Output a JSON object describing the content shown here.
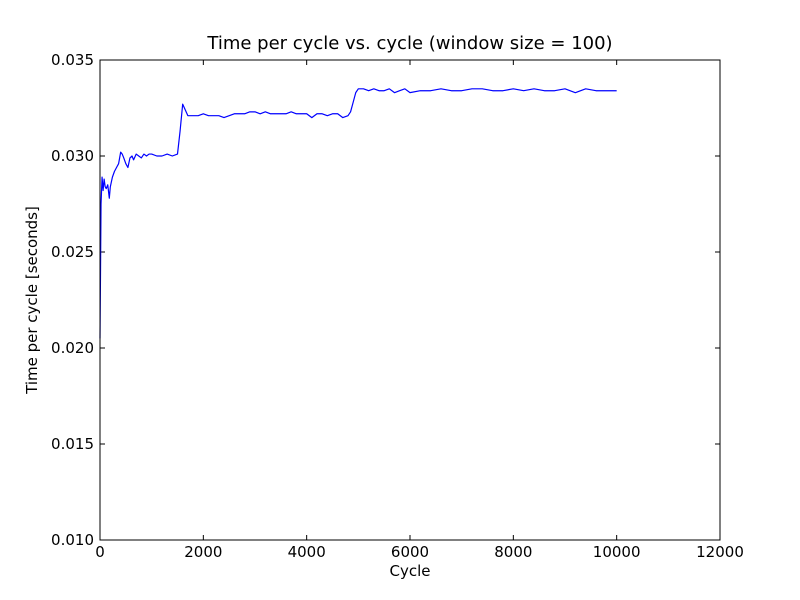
{
  "chart_data": {
    "type": "line",
    "title": "Time per cycle vs. cycle (window size = 100)",
    "xlabel": "Cycle",
    "ylabel": "Time per cycle [seconds]",
    "xlim": [
      0,
      12000
    ],
    "ylim": [
      0.01,
      0.035
    ],
    "x_ticks": [
      0,
      2000,
      4000,
      6000,
      8000,
      10000,
      12000
    ],
    "x_tick_labels": [
      "0",
      "2000",
      "4000",
      "6000",
      "8000",
      "10000",
      "12000"
    ],
    "y_ticks": [
      0.01,
      0.015,
      0.02,
      0.025,
      0.03,
      0.035
    ],
    "y_tick_labels": [
      "0.010",
      "0.015",
      "0.020",
      "0.025",
      "0.030",
      "0.035"
    ],
    "grid": false,
    "legend": "none",
    "series": [
      {
        "color": "#0000ff",
        "x": [
          0,
          20,
          40,
          60,
          80,
          100,
          120,
          150,
          180,
          200,
          240,
          280,
          320,
          360,
          400,
          430,
          460,
          500,
          540,
          580,
          620,
          650,
          700,
          750,
          800,
          850,
          900,
          950,
          1000,
          1100,
          1200,
          1300,
          1400,
          1500,
          1550,
          1600,
          1650,
          1700,
          1800,
          1900,
          2000,
          2100,
          2200,
          2300,
          2400,
          2500,
          2600,
          2700,
          2800,
          2900,
          3000,
          3100,
          3200,
          3300,
          3400,
          3500,
          3600,
          3700,
          3800,
          3900,
          4000,
          4100,
          4200,
          4300,
          4400,
          4500,
          4600,
          4700,
          4800,
          4850,
          4900,
          4950,
          5000,
          5100,
          5200,
          5300,
          5400,
          5500,
          5600,
          5700,
          5800,
          5900,
          6000,
          6200,
          6400,
          6600,
          6800,
          7000,
          7200,
          7400,
          7600,
          7800,
          8000,
          8200,
          8400,
          8600,
          8800,
          9000,
          9200,
          9400,
          9600,
          9800,
          10000
        ],
        "y": [
          0.0205,
          0.0275,
          0.0289,
          0.0282,
          0.0288,
          0.0284,
          0.0283,
          0.0285,
          0.0278,
          0.0284,
          0.0289,
          0.0292,
          0.0294,
          0.0296,
          0.0302,
          0.0301,
          0.0299,
          0.0296,
          0.0294,
          0.0299,
          0.03,
          0.0298,
          0.0301,
          0.03,
          0.0299,
          0.0301,
          0.03,
          0.0301,
          0.0301,
          0.03,
          0.03,
          0.0301,
          0.03,
          0.0301,
          0.0313,
          0.0327,
          0.0324,
          0.0321,
          0.0321,
          0.0321,
          0.0322,
          0.0321,
          0.0321,
          0.0321,
          0.032,
          0.0321,
          0.0322,
          0.0322,
          0.0322,
          0.0323,
          0.0323,
          0.0322,
          0.0323,
          0.0322,
          0.0322,
          0.0322,
          0.0322,
          0.0323,
          0.0322,
          0.0322,
          0.0322,
          0.032,
          0.0322,
          0.0322,
          0.0321,
          0.0322,
          0.0322,
          0.032,
          0.0321,
          0.0323,
          0.0328,
          0.0333,
          0.0335,
          0.0335,
          0.0334,
          0.0335,
          0.0334,
          0.0334,
          0.0335,
          0.0333,
          0.0334,
          0.0335,
          0.0333,
          0.0334,
          0.0334,
          0.0335,
          0.0334,
          0.0334,
          0.0335,
          0.0335,
          0.0334,
          0.0334,
          0.0335,
          0.0334,
          0.0335,
          0.0334,
          0.0334,
          0.0335,
          0.0333,
          0.0335,
          0.0334,
          0.0334,
          0.0334
        ]
      }
    ]
  }
}
